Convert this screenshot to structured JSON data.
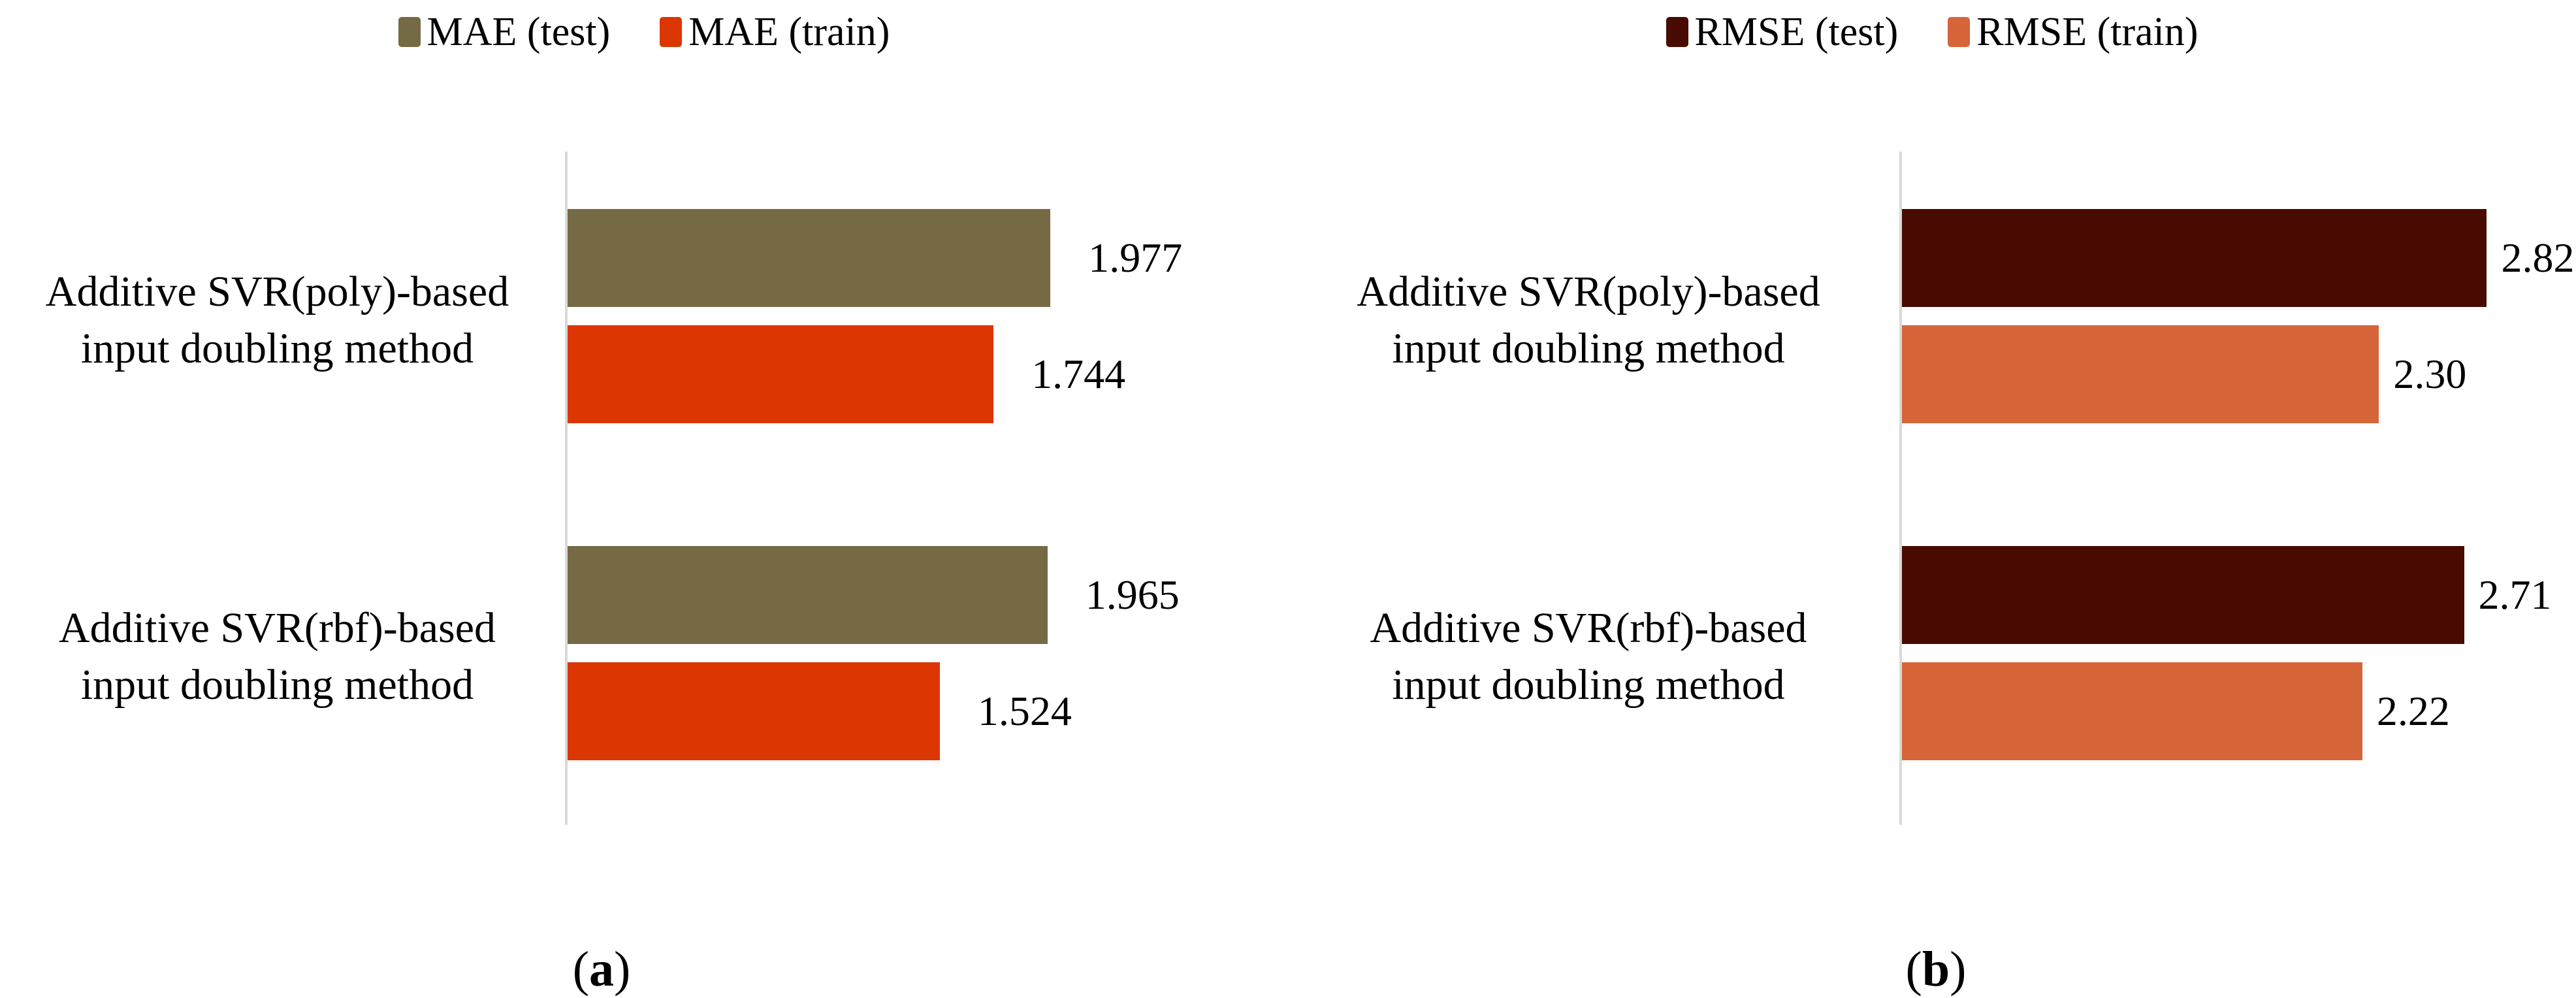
{
  "figure": {
    "description": "Two grouped horizontal bar charts comparing error metrics of additive SVR-based input doubling methods",
    "panels": [
      "a",
      "b"
    ]
  },
  "chart_data": [
    {
      "type": "bar",
      "orientation": "horizontal",
      "panel": "a",
      "caption": "(a)",
      "title": "",
      "legend_position": "top",
      "grid": false,
      "axis_line_color": "#d9d9d9",
      "categories": [
        "Additive SVR(poly)-based input doubling method",
        "Additive SVR(rbf)-based input doubling method"
      ],
      "category_label_lines": [
        [
          "Additive SVR(poly)-based",
          "input doubling method"
        ],
        [
          "Additive SVR(rbf)-based",
          "input doubling method"
        ]
      ],
      "series": [
        {
          "name": "MAE (test)",
          "color": "#766a45",
          "values": [
            1.977,
            1.965
          ],
          "value_labels": [
            "1.977",
            "1.965"
          ]
        },
        {
          "name": "MAE (train)",
          "color": "#dc3603",
          "values": [
            1.744,
            1.524
          ],
          "value_labels": [
            "1.744",
            "1.524"
          ]
        }
      ],
      "xlim": [
        0,
        2.95
      ]
    },
    {
      "type": "bar",
      "orientation": "horizontal",
      "panel": "b",
      "caption": "(b)",
      "title": "",
      "legend_position": "top",
      "grid": false,
      "axis_line_color": "#d9d9d9",
      "categories": [
        "Additive SVR(poly)-based input doubling method",
        "Additive SVR(rbf)-based input doubling method"
      ],
      "category_label_lines": [
        [
          "Additive SVR(poly)-based",
          "input doubling method"
        ],
        [
          "Additive SVR(rbf)-based",
          "input doubling method"
        ]
      ],
      "series": [
        {
          "name": "RMSE (test)",
          "color": "#470b01",
          "values": [
            2.82,
            2.71
          ],
          "value_labels": [
            "2.82",
            "2.71"
          ]
        },
        {
          "name": "RMSE (train)",
          "color": "#d6653a",
          "values": [
            2.3,
            2.22
          ],
          "value_labels": [
            "2.30",
            "2.22"
          ]
        }
      ],
      "xlim": [
        0,
        3.25
      ]
    }
  ]
}
